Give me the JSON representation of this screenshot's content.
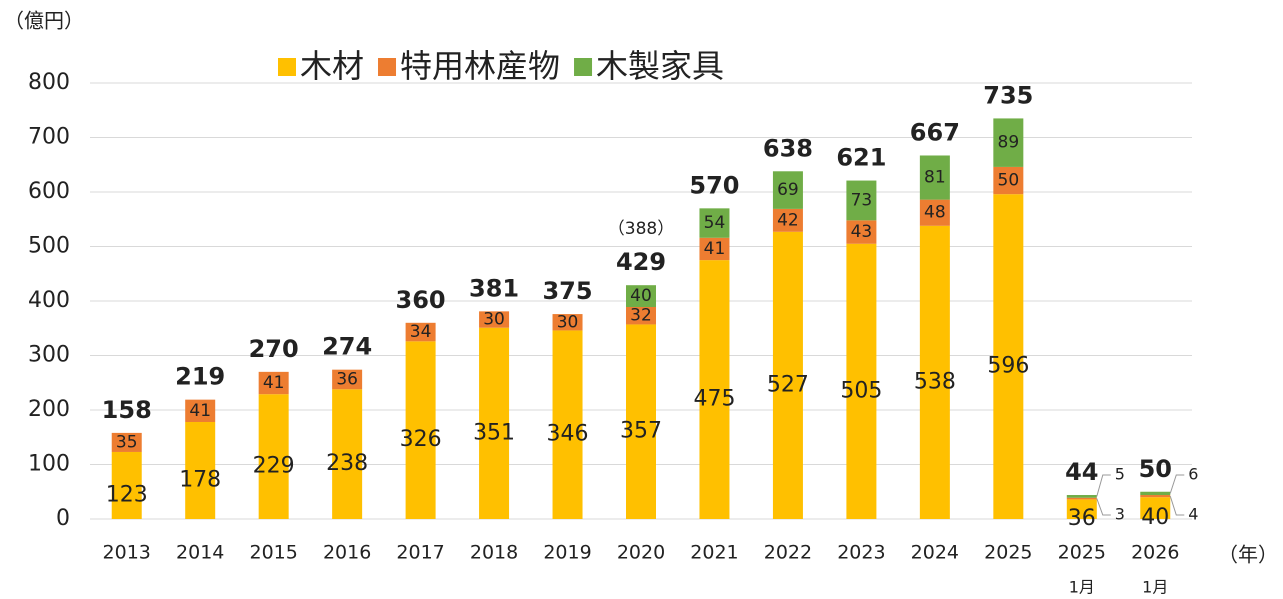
{
  "chart_data": {
    "type": "stacked-bar",
    "y_unit": "（億円）",
    "x_unit": "（年）",
    "categories": [
      "2013",
      "2014",
      "2015",
      "2016",
      "2017",
      "2018",
      "2019",
      "2020",
      "2021",
      "2022",
      "2023",
      "2024",
      "2025",
      "2025",
      "2026"
    ],
    "category_notes": [
      null,
      null,
      null,
      null,
      null,
      null,
      null,
      null,
      null,
      null,
      null,
      null,
      null,
      "1月",
      "1月"
    ],
    "series": [
      {
        "name": "木材",
        "color": "#FFC000",
        "values": [
          123,
          178,
          229,
          238,
          326,
          351,
          346,
          357,
          475,
          527,
          505,
          538,
          596,
          36,
          40
        ]
      },
      {
        "name": "特用林産物",
        "color": "#ED7D31",
        "values": [
          35,
          41,
          41,
          36,
          34,
          30,
          30,
          32,
          41,
          42,
          43,
          48,
          50,
          3,
          4
        ]
      },
      {
        "name": "木製家具",
        "color": "#70AD47",
        "values": [
          null,
          null,
          null,
          null,
          null,
          null,
          null,
          40,
          54,
          69,
          73,
          81,
          89,
          5,
          6
        ]
      }
    ],
    "totals": [
      158,
      219,
      270,
      274,
      360,
      381,
      375,
      429,
      570,
      638,
      621,
      667,
      735,
      44,
      50
    ],
    "annotation": {
      "category": 7,
      "text": "（388）"
    },
    "ylim": [
      0,
      800
    ],
    "yticks": [
      0,
      100,
      200,
      300,
      400,
      500,
      600,
      700,
      800
    ],
    "grid": true
  }
}
